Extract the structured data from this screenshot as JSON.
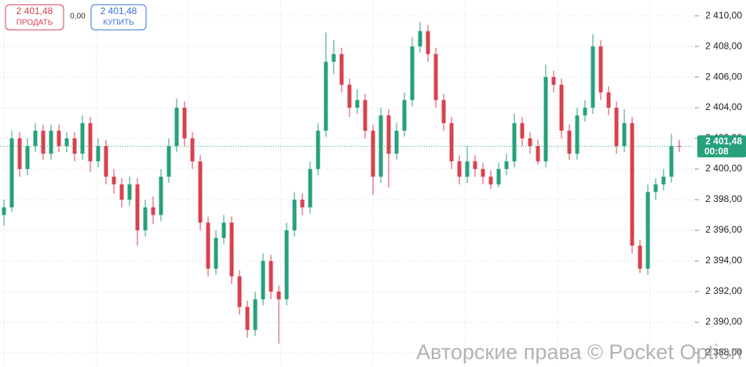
{
  "chart_data": {
    "type": "candlestick",
    "trade_panel": {
      "sell_price": "2 401,48",
      "sell_label": "ПРОДАТЬ",
      "spread": "0,00",
      "buy_price": "2 401,48",
      "buy_label": "КУПИТЬ"
    },
    "watermark": "Авторские права © Pocket Option",
    "up_color": "#26a17b",
    "down_color": "#d8414f",
    "grid": true,
    "ylim": [
      2387.08,
      2411.03
    ],
    "yticks": [
      {
        "value": 2410,
        "label": "2 410,00"
      },
      {
        "value": 2408,
        "label": "2 408,00"
      },
      {
        "value": 2406,
        "label": "2 406,00"
      },
      {
        "value": 2404,
        "label": "2 404,00"
      },
      {
        "value": 2402,
        "label": "2 402,00"
      },
      {
        "value": 2400,
        "label": "2 400,00"
      },
      {
        "value": 2398,
        "label": "2 398,00"
      },
      {
        "value": 2396,
        "label": "2 396,00"
      },
      {
        "value": 2394,
        "label": "2 394,00"
      },
      {
        "value": 2392,
        "label": "2 392,00"
      },
      {
        "value": 2390,
        "label": "2 390,00"
      },
      {
        "value": 2388,
        "label": "2 388,00"
      }
    ],
    "current_price": {
      "value": 2401.48,
      "label": "2 401,48"
    },
    "timer": "00:08",
    "open": [
      2397.0,
      2397.5,
      2402.0,
      2400.0,
      2401.5,
      2402.5,
      2401.0,
      2402.5,
      2401.5,
      2402.0,
      2401.0,
      2403.0,
      2400.5,
      2401.5,
      2399.5,
      2399.0,
      2398.0,
      2399.0,
      2396.0,
      2397.5,
      2397.0,
      2399.5,
      2401.5,
      2404.0,
      2402.0,
      2400.5,
      2396.5,
      2393.5,
      2395.5,
      2396.5,
      2393.0,
      2391.0,
      2389.5,
      2391.5,
      2394.0,
      2392.0,
      2391.5,
      2396.0,
      2398.0,
      2397.5,
      2400.0,
      2402.5,
      2407.0,
      2407.5,
      2405.5,
      2404.0,
      2404.5,
      2402.5,
      2399.5,
      2403.5,
      2401.0,
      2402.5,
      2404.5,
      2408.0,
      2409.0,
      2407.5,
      2404.5,
      2403.0,
      2400.5,
      2399.5,
      2400.5,
      2400.0,
      2399.5,
      2399.0,
      2400.0,
      2400.5,
      2403.0,
      2402.0,
      2401.5,
      2400.5,
      2406.0,
      2405.5,
      2402.5,
      2401.0,
      2403.5,
      2404.0,
      2408.0,
      2405.0,
      2404.0,
      2401.5,
      2403.0,
      2395.0,
      2393.5,
      2398.5,
      2399.0,
      2399.5,
      2401.5
    ],
    "high": [
      2398.0,
      2402.5,
      2402.4,
      2402.0,
      2403.0,
      2402.9,
      2402.9,
      2402.9,
      2402.4,
      2402.4,
      2403.5,
      2403.4,
      2402.0,
      2401.9,
      2400.0,
      2399.4,
      2399.5,
      2399.4,
      2398.0,
      2398.2,
      2400.0,
      2402.0,
      2404.6,
      2404.4,
      2402.4,
      2400.9,
      2396.9,
      2396.0,
      2397.0,
      2396.9,
      2393.4,
      2391.4,
      2392.0,
      2394.5,
      2394.4,
      2392.4,
      2396.5,
      2398.5,
      2398.4,
      2400.5,
      2403.0,
      2408.9,
      2408.4,
      2407.9,
      2405.9,
      2405.2,
      2404.9,
      2402.9,
      2404.0,
      2403.9,
      2403.0,
      2405.0,
      2408.6,
      2409.6,
      2409.4,
      2407.9,
      2404.9,
      2403.4,
      2400.9,
      2401.5,
      2400.9,
      2400.4,
      2399.9,
      2400.4,
      2401.0,
      2403.6,
      2403.4,
      2402.4,
      2401.9,
      2406.8,
      2406.4,
      2405.9,
      2402.9,
      2404.0,
      2404.5,
      2408.8,
      2408.4,
      2405.4,
      2404.4,
      2403.9,
      2403.4,
      2395.4,
      2399.0,
      2399.4,
      2400.0,
      2402.3,
      2401.9
    ],
    "low": [
      2396.3,
      2397.2,
      2399.5,
      2399.6,
      2401.1,
      2400.6,
      2400.6,
      2401.1,
      2401.1,
      2400.5,
      2400.6,
      2399.8,
      2400.1,
      2399.0,
      2398.4,
      2397.5,
      2397.6,
      2395.0,
      2395.6,
      2396.4,
      2396.6,
      2399.1,
      2401.1,
      2401.5,
      2400.0,
      2396.0,
      2393.0,
      2393.1,
      2395.1,
      2392.5,
      2390.5,
      2389.0,
      2389.1,
      2391.1,
      2391.5,
      2388.6,
      2391.1,
      2395.6,
      2397.0,
      2397.1,
      2399.6,
      2402.1,
      2406.2,
      2405.0,
      2403.4,
      2403.6,
      2402.0,
      2398.3,
      2399.1,
      2398.8,
      2400.6,
      2402.1,
      2404.1,
      2407.6,
      2407.0,
      2404.0,
      2402.5,
      2400.0,
      2399.0,
      2399.1,
      2399.5,
      2399.0,
      2398.7,
      2398.8,
      2399.6,
      2400.1,
      2401.5,
      2401.0,
      2400.3,
      2400.1,
      2405.0,
      2402.0,
      2400.6,
      2400.6,
      2403.1,
      2403.6,
      2404.5,
      2403.5,
      2401.0,
      2401.1,
      2394.5,
      2393.2,
      2393.1,
      2398.0,
      2398.6,
      2399.1,
      2401.1
    ],
    "close": [
      2397.5,
      2402.0,
      2400.0,
      2401.5,
      2402.5,
      2401.0,
      2402.5,
      2401.5,
      2402.0,
      2401.0,
      2403.0,
      2400.5,
      2401.5,
      2399.5,
      2399.0,
      2398.0,
      2399.0,
      2396.0,
      2397.5,
      2397.0,
      2399.5,
      2401.5,
      2404.0,
      2402.0,
      2400.5,
      2396.5,
      2393.5,
      2395.5,
      2396.5,
      2393.0,
      2391.0,
      2389.5,
      2391.5,
      2394.0,
      2392.0,
      2391.5,
      2396.0,
      2398.0,
      2397.5,
      2400.0,
      2402.5,
      2407.0,
      2407.5,
      2405.5,
      2404.0,
      2404.5,
      2402.5,
      2399.5,
      2403.5,
      2401.0,
      2402.5,
      2404.5,
      2408.0,
      2409.0,
      2407.5,
      2404.5,
      2403.0,
      2400.5,
      2399.5,
      2400.5,
      2400.0,
      2399.5,
      2399.0,
      2400.0,
      2400.5,
      2403.0,
      2402.0,
      2401.5,
      2400.5,
      2406.0,
      2405.5,
      2402.5,
      2401.0,
      2403.5,
      2404.0,
      2408.0,
      2405.0,
      2404.0,
      2401.5,
      2403.0,
      2395.0,
      2393.5,
      2398.5,
      2399.0,
      2399.5,
      2401.5,
      2401.48
    ]
  }
}
